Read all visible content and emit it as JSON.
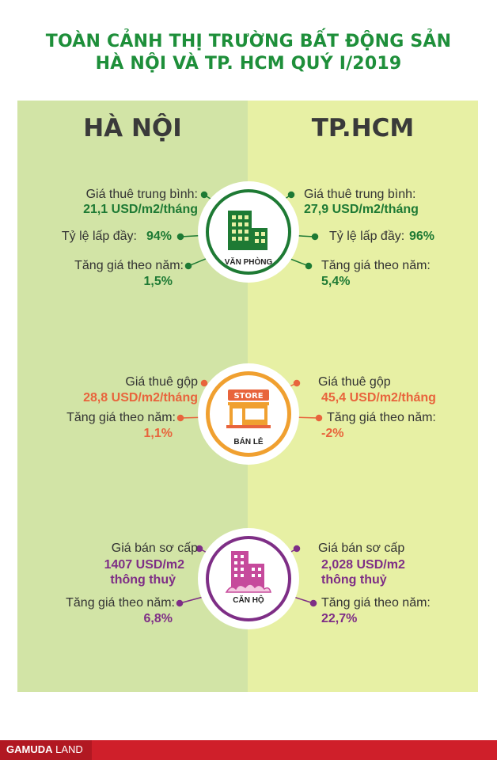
{
  "title": {
    "line1": "TOÀN CẢNH THỊ TRƯỜNG BẤT ĐỘNG SẢN",
    "line2": "HÀ NỘI VÀ TP. HCM QUÝ I/2019"
  },
  "cities": {
    "left": "HÀ NỘI",
    "right": "TP.HCM"
  },
  "office": {
    "badge": "VĂN PHÒNG",
    "left": {
      "rent_label": "Giá thuê trung bình:",
      "rent_value": "21,1 USD/m2/tháng",
      "occ_label": "Tỷ lệ lấp đầy:",
      "occ_value": "94%",
      "growth_label": "Tăng giá theo năm:",
      "growth_value": "1,5%"
    },
    "right": {
      "rent_label": "Giá thuê trung bình:",
      "rent_value": "27,9 USD/m2/tháng",
      "occ_label": "Tỷ lệ lấp đầy:",
      "occ_value": "96%",
      "growth_label": "Tăng giá theo năm:",
      "growth_value": "5,4%"
    }
  },
  "retail": {
    "badge": "BÁN LẺ",
    "store_sign": "STORE",
    "left": {
      "rent_label": "Giá thuê gộp",
      "rent_value": "28,8 USD/m2/tháng",
      "growth_label": "Tăng giá theo năm:",
      "growth_value": "1,1%"
    },
    "right": {
      "rent_label": "Giá thuê gộp",
      "rent_value": "45,4 USD/m2/tháng",
      "growth_label": "Tăng giá theo năm:",
      "growth_value": "-2%"
    }
  },
  "apartment": {
    "badge": "CĂN HỘ",
    "left": {
      "price_label": "Giá bán sơ cấp",
      "price_value_1": "1407 USD/m2",
      "price_value_2": "thông thuỷ",
      "growth_label": "Tăng giá theo năm:",
      "growth_value": "6,8%"
    },
    "right": {
      "price_label": "Giá bán sơ cấp",
      "price_value_1": "2,028 USD/m2",
      "price_value_2": "thông thuỷ",
      "growth_label": "Tăng giá theo năm:",
      "growth_value": "22,7%"
    }
  },
  "footer": {
    "brand_bold": "GAMUDA",
    "brand_light": " LAND"
  },
  "colors": {
    "title": "#1e8f3a",
    "office": "#1e7a34",
    "retail": "#e8643c",
    "apartment": "#7e2e86",
    "left_panel": "#d2e4a6",
    "right_panel": "#e7f0a4",
    "footer": "#cf1f2a"
  }
}
